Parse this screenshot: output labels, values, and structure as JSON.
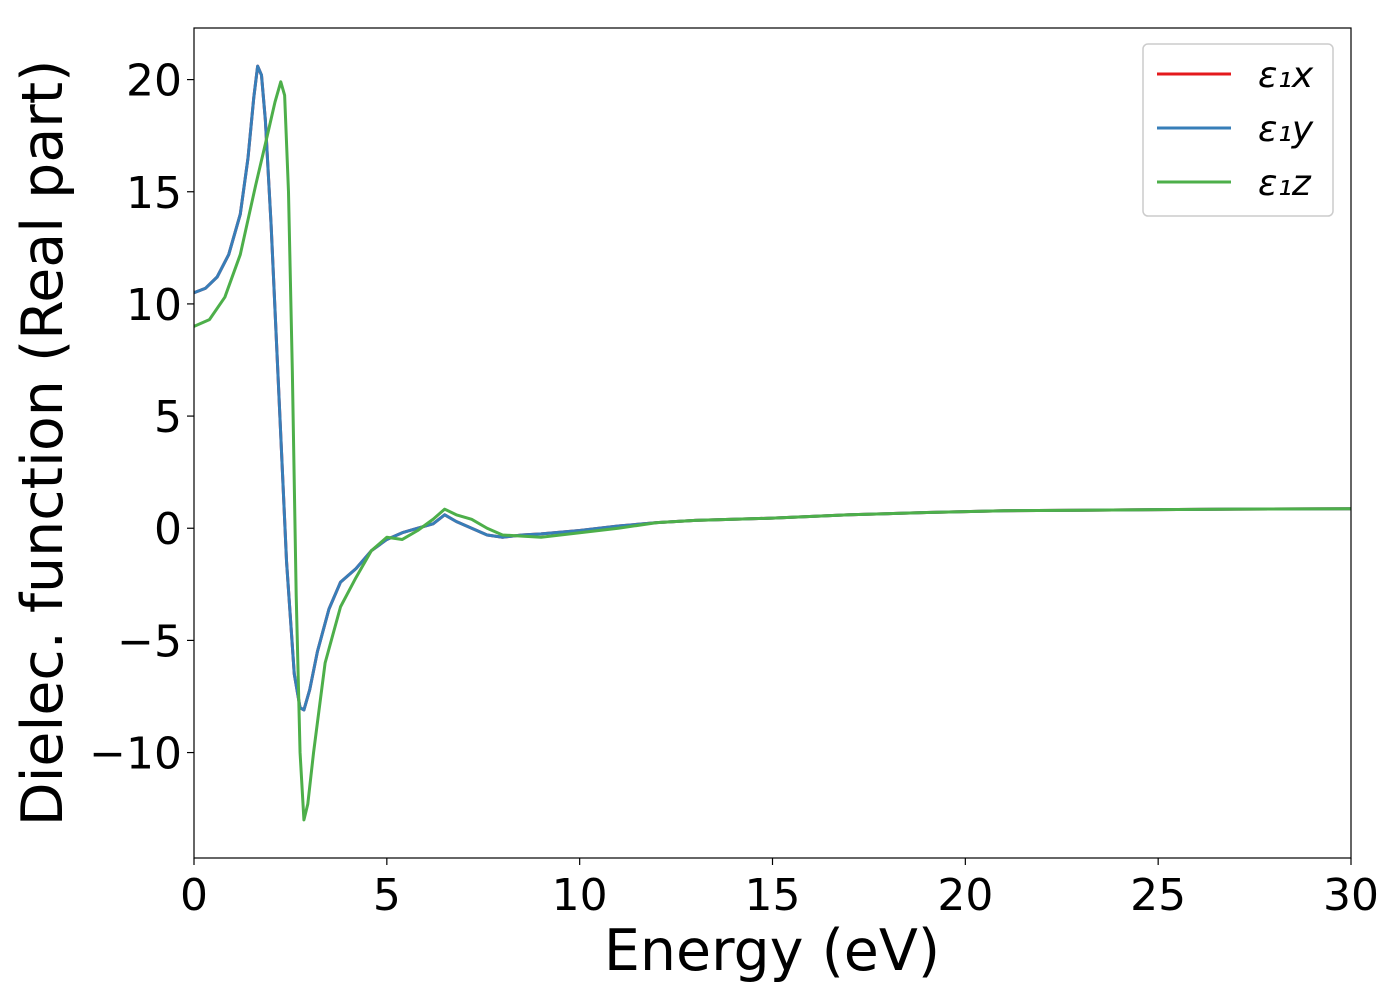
{
  "chart_data": {
    "type": "line",
    "xlabel": "Energy (eV)",
    "ylabel": "Dielec. function (Real part)",
    "xlim": [
      0,
      30
    ],
    "ylim": [
      -14.7,
      22.3
    ],
    "x_ticks": [
      0,
      5,
      10,
      15,
      20,
      25,
      30
    ],
    "x_tick_labels": [
      "0",
      "5",
      "10",
      "15",
      "20",
      "25",
      "30"
    ],
    "y_ticks": [
      -10,
      -5,
      0,
      5,
      10,
      15,
      20
    ],
    "y_tick_labels": [
      "−10",
      "−5",
      "0",
      "5",
      "10",
      "15",
      "20"
    ],
    "grid": false,
    "legend_position": "top-right",
    "series": [
      {
        "name": "ε₁x",
        "color": "#e41a1c",
        "points": [
          [
            0,
            10.5
          ],
          [
            0.3,
            10.7
          ],
          [
            0.6,
            11.2
          ],
          [
            0.9,
            12.2
          ],
          [
            1.2,
            14.0
          ],
          [
            1.4,
            16.5
          ],
          [
            1.55,
            19.2
          ],
          [
            1.65,
            20.6
          ],
          [
            1.75,
            20.2
          ],
          [
            1.85,
            18.2
          ],
          [
            2.0,
            13.5
          ],
          [
            2.2,
            6.0
          ],
          [
            2.4,
            -1.5
          ],
          [
            2.6,
            -6.5
          ],
          [
            2.75,
            -8.0
          ],
          [
            2.85,
            -8.1
          ],
          [
            3.0,
            -7.2
          ],
          [
            3.2,
            -5.5
          ],
          [
            3.5,
            -3.6
          ],
          [
            3.8,
            -2.4
          ],
          [
            4.2,
            -1.8
          ],
          [
            4.6,
            -1.0
          ],
          [
            5.0,
            -0.5
          ],
          [
            5.4,
            -0.2
          ],
          [
            5.8,
            0.0
          ],
          [
            6.2,
            0.2
          ],
          [
            6.5,
            0.6
          ],
          [
            6.8,
            0.3
          ],
          [
            7.2,
            0.0
          ],
          [
            7.6,
            -0.3
          ],
          [
            8.0,
            -0.4
          ],
          [
            8.5,
            -0.3
          ],
          [
            9.0,
            -0.25
          ],
          [
            10,
            -0.1
          ],
          [
            11,
            0.1
          ],
          [
            12,
            0.25
          ],
          [
            13,
            0.35
          ],
          [
            14,
            0.4
          ],
          [
            15,
            0.45
          ],
          [
            17,
            0.6
          ],
          [
            19,
            0.7
          ],
          [
            21,
            0.78
          ],
          [
            23,
            0.8
          ],
          [
            25,
            0.83
          ],
          [
            27,
            0.85
          ],
          [
            30,
            0.87
          ]
        ]
      },
      {
        "name": "ε₁y",
        "color": "#377eb8",
        "points": [
          [
            0,
            10.5
          ],
          [
            0.3,
            10.7
          ],
          [
            0.6,
            11.2
          ],
          [
            0.9,
            12.2
          ],
          [
            1.2,
            14.0
          ],
          [
            1.4,
            16.5
          ],
          [
            1.55,
            19.2
          ],
          [
            1.65,
            20.6
          ],
          [
            1.75,
            20.2
          ],
          [
            1.85,
            18.2
          ],
          [
            2.0,
            13.5
          ],
          [
            2.2,
            6.0
          ],
          [
            2.4,
            -1.5
          ],
          [
            2.6,
            -6.5
          ],
          [
            2.75,
            -8.0
          ],
          [
            2.85,
            -8.1
          ],
          [
            3.0,
            -7.2
          ],
          [
            3.2,
            -5.5
          ],
          [
            3.5,
            -3.6
          ],
          [
            3.8,
            -2.4
          ],
          [
            4.2,
            -1.8
          ],
          [
            4.6,
            -1.0
          ],
          [
            5.0,
            -0.5
          ],
          [
            5.4,
            -0.2
          ],
          [
            5.8,
            0.0
          ],
          [
            6.2,
            0.2
          ],
          [
            6.5,
            0.6
          ],
          [
            6.8,
            0.3
          ],
          [
            7.2,
            0.0
          ],
          [
            7.6,
            -0.3
          ],
          [
            8.0,
            -0.4
          ],
          [
            8.5,
            -0.3
          ],
          [
            9.0,
            -0.25
          ],
          [
            10,
            -0.1
          ],
          [
            11,
            0.1
          ],
          [
            12,
            0.25
          ],
          [
            13,
            0.35
          ],
          [
            14,
            0.4
          ],
          [
            15,
            0.45
          ],
          [
            17,
            0.6
          ],
          [
            19,
            0.7
          ],
          [
            21,
            0.78
          ],
          [
            23,
            0.8
          ],
          [
            25,
            0.83
          ],
          [
            27,
            0.85
          ],
          [
            30,
            0.87
          ]
        ]
      },
      {
        "name": "ε₁z",
        "color": "#4daf4a",
        "points": [
          [
            0,
            9.0
          ],
          [
            0.4,
            9.3
          ],
          [
            0.8,
            10.3
          ],
          [
            1.2,
            12.2
          ],
          [
            1.6,
            15.3
          ],
          [
            1.9,
            17.5
          ],
          [
            2.1,
            19.0
          ],
          [
            2.25,
            19.9
          ],
          [
            2.35,
            19.3
          ],
          [
            2.45,
            15.0
          ],
          [
            2.55,
            7.0
          ],
          [
            2.65,
            -3.0
          ],
          [
            2.75,
            -10.0
          ],
          [
            2.85,
            -13.0
          ],
          [
            2.95,
            -12.3
          ],
          [
            3.1,
            -10.0
          ],
          [
            3.4,
            -6.0
          ],
          [
            3.8,
            -3.5
          ],
          [
            4.2,
            -2.2
          ],
          [
            4.6,
            -1.0
          ],
          [
            5.0,
            -0.4
          ],
          [
            5.4,
            -0.5
          ],
          [
            5.8,
            -0.1
          ],
          [
            6.2,
            0.4
          ],
          [
            6.5,
            0.85
          ],
          [
            6.8,
            0.6
          ],
          [
            7.2,
            0.4
          ],
          [
            7.6,
            0.0
          ],
          [
            8.0,
            -0.3
          ],
          [
            8.5,
            -0.35
          ],
          [
            9.0,
            -0.4
          ],
          [
            10,
            -0.2
          ],
          [
            11,
            0.0
          ],
          [
            12,
            0.25
          ],
          [
            13,
            0.35
          ],
          [
            14,
            0.4
          ],
          [
            15,
            0.45
          ],
          [
            17,
            0.6
          ],
          [
            19,
            0.7
          ],
          [
            21,
            0.78
          ],
          [
            23,
            0.8
          ],
          [
            25,
            0.83
          ],
          [
            27,
            0.85
          ],
          [
            30,
            0.87
          ]
        ]
      }
    ]
  }
}
